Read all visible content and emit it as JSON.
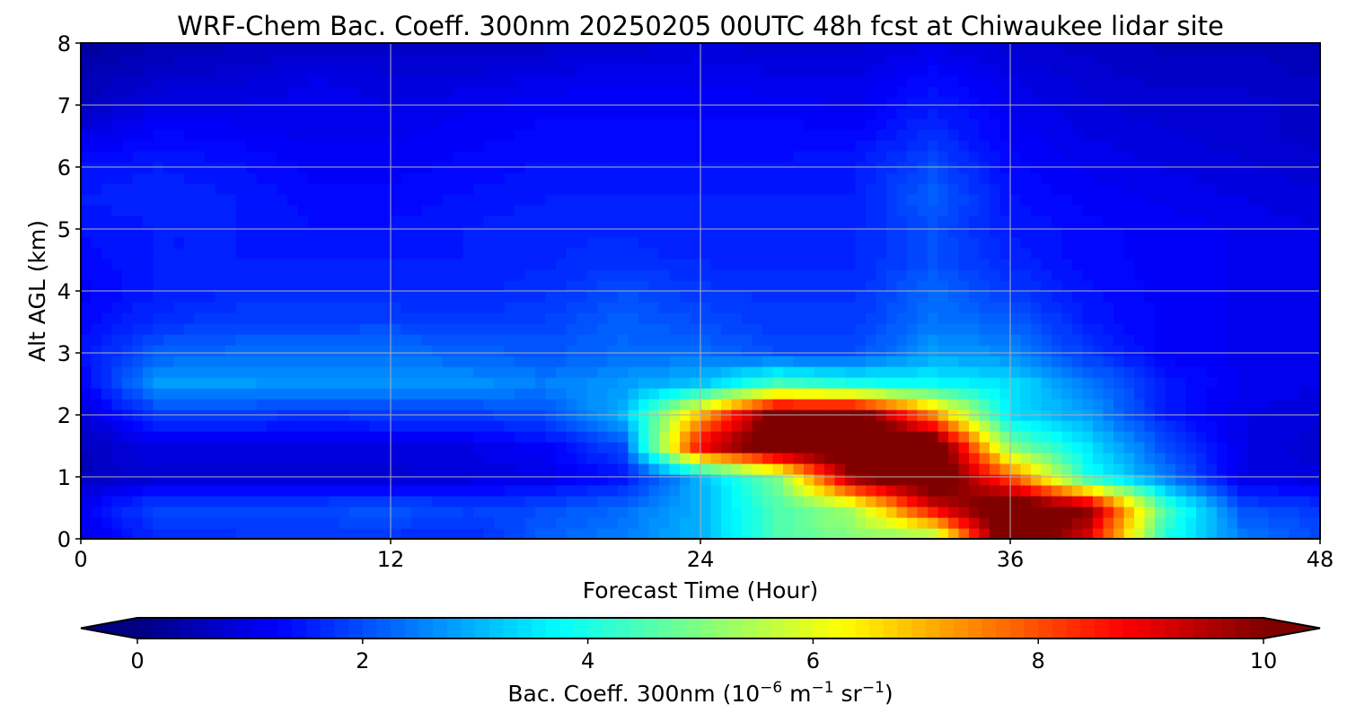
{
  "chart_data": {
    "type": "heatmap",
    "title": "WRF-Chem Bac. Coeff. 300nm  20250205 00UTC 48h fcst at Chiwaukee lidar site",
    "xlabel": "Forecast Time (Hour)",
    "ylabel": "Alt AGL (km)",
    "xlim": [
      0,
      48
    ],
    "ylim": [
      0,
      8
    ],
    "xticks": [
      "0",
      "12",
      "24",
      "36",
      "48"
    ],
    "xtick_values": [
      0,
      12,
      24,
      36,
      48
    ],
    "yticks": [
      "0",
      "1",
      "2",
      "3",
      "4",
      "5",
      "6",
      "7",
      "8"
    ],
    "ytick_values": [
      0,
      1,
      2,
      3,
      4,
      5,
      6,
      7,
      8
    ],
    "grid": true,
    "colormap": "jet",
    "colorbar": {
      "label_main": "Bac. Coeff. 300nm  (10",
      "label_exp1": "−6",
      "label_mid": " m",
      "label_exp2": "−1",
      "label_mid2": " sr",
      "label_exp3": "−1",
      "label_end": ")",
      "range": [
        0,
        10
      ],
      "ticks": [
        "0",
        "2",
        "4",
        "6",
        "8",
        "10"
      ],
      "tick_values": [
        0,
        2,
        4,
        6,
        8,
        10
      ],
      "extend": "both",
      "levels": 80
    },
    "x": [
      0,
      3,
      6,
      9,
      12,
      15,
      18,
      21,
      24,
      27,
      30,
      33,
      36,
      39,
      42,
      45,
      48
    ],
    "y": [
      0,
      0.5,
      1,
      1.5,
      2,
      2.5,
      3,
      3.5,
      4,
      4.5,
      5,
      5.5,
      6,
      6.5,
      7,
      7.5,
      8
    ],
    "z": [
      [
        1.0,
        1.6,
        1.7,
        1.7,
        1.7,
        1.6,
        2.2,
        2.5,
        3.0,
        4.5,
        5.0,
        5.0,
        11,
        9,
        4.0,
        2.5,
        2.0
      ],
      [
        1.2,
        2.0,
        2.0,
        2.0,
        2.1,
        1.9,
        2.0,
        2.3,
        3.0,
        4.5,
        5.5,
        9,
        11,
        10,
        4.5,
        2.0,
        1.8
      ],
      [
        0.6,
        0.8,
        0.8,
        0.8,
        0.8,
        0.9,
        1.0,
        1.4,
        3.0,
        5.0,
        10,
        11,
        8,
        4.0,
        2.5,
        1.0,
        0.9
      ],
      [
        0.6,
        1.0,
        1.0,
        1.0,
        1.0,
        1.0,
        1.2,
        2.0,
        9,
        11,
        11,
        11,
        5,
        3.5,
        2.0,
        1.0,
        0.8
      ],
      [
        0.8,
        1.8,
        1.8,
        1.7,
        1.8,
        1.8,
        2.0,
        3.0,
        7,
        10.5,
        10.5,
        7.5,
        3.5,
        2.8,
        1.5,
        1.0,
        0.9
      ],
      [
        1.2,
        2.8,
        2.8,
        2.7,
        2.7,
        2.7,
        2.5,
        2.8,
        3.2,
        4.5,
        4.0,
        3.8,
        3.5,
        2.5,
        1.5,
        1.1,
        1.0
      ],
      [
        1.4,
        2.2,
        2.3,
        2.3,
        2.4,
        2.2,
        2.1,
        2.3,
        2.3,
        2.0,
        2.0,
        2.8,
        2.6,
        1.8,
        1.2,
        1.1,
        1.0
      ],
      [
        1.3,
        1.7,
        1.9,
        1.9,
        1.9,
        1.8,
        1.9,
        2.2,
        2.0,
        1.8,
        1.8,
        2.4,
        2.2,
        1.5,
        1.2,
        1.1,
        1.0
      ],
      [
        1.2,
        1.5,
        1.6,
        1.6,
        1.6,
        1.6,
        1.7,
        2.0,
        1.8,
        1.7,
        1.7,
        2.3,
        1.8,
        1.4,
        1.2,
        1.1,
        1.0
      ],
      [
        1.3,
        1.5,
        1.5,
        1.5,
        1.5,
        1.5,
        1.6,
        1.7,
        1.6,
        1.6,
        1.6,
        2.0,
        1.6,
        1.3,
        1.2,
        1.1,
        1.0
      ],
      [
        1.4,
        1.5,
        1.5,
        1.4,
        1.4,
        1.5,
        1.6,
        1.6,
        1.5,
        1.5,
        1.6,
        2.0,
        1.5,
        1.3,
        1.2,
        1.1,
        1.0
      ],
      [
        1.5,
        1.6,
        1.5,
        1.3,
        1.3,
        1.4,
        1.5,
        1.5,
        1.5,
        1.5,
        1.5,
        2.2,
        1.4,
        1.2,
        1.1,
        1.0,
        0.9
      ],
      [
        1.4,
        1.5,
        1.4,
        1.2,
        1.2,
        1.3,
        1.4,
        1.4,
        1.4,
        1.4,
        1.5,
        2.0,
        1.3,
        1.1,
        1.0,
        0.9,
        0.8
      ],
      [
        1.0,
        1.3,
        1.2,
        1.1,
        1.1,
        1.2,
        1.3,
        1.3,
        1.3,
        1.3,
        1.3,
        1.7,
        1.2,
        1.0,
        0.9,
        0.8,
        0.7
      ],
      [
        0.6,
        1.0,
        1.0,
        1.1,
        1.0,
        1.1,
        1.2,
        1.2,
        1.2,
        1.2,
        1.1,
        1.5,
        1.1,
        0.9,
        0.8,
        0.8,
        0.7
      ],
      [
        0.5,
        0.7,
        0.8,
        1.0,
        0.9,
        0.9,
        1.0,
        1.1,
        1.1,
        1.0,
        1.0,
        1.3,
        1.0,
        0.8,
        0.7,
        0.7,
        0.6
      ],
      [
        0.3,
        0.5,
        0.6,
        0.6,
        0.6,
        0.6,
        0.7,
        0.8,
        0.9,
        0.8,
        0.8,
        1.0,
        0.8,
        0.7,
        0.6,
        0.6,
        0.5
      ]
    ]
  }
}
